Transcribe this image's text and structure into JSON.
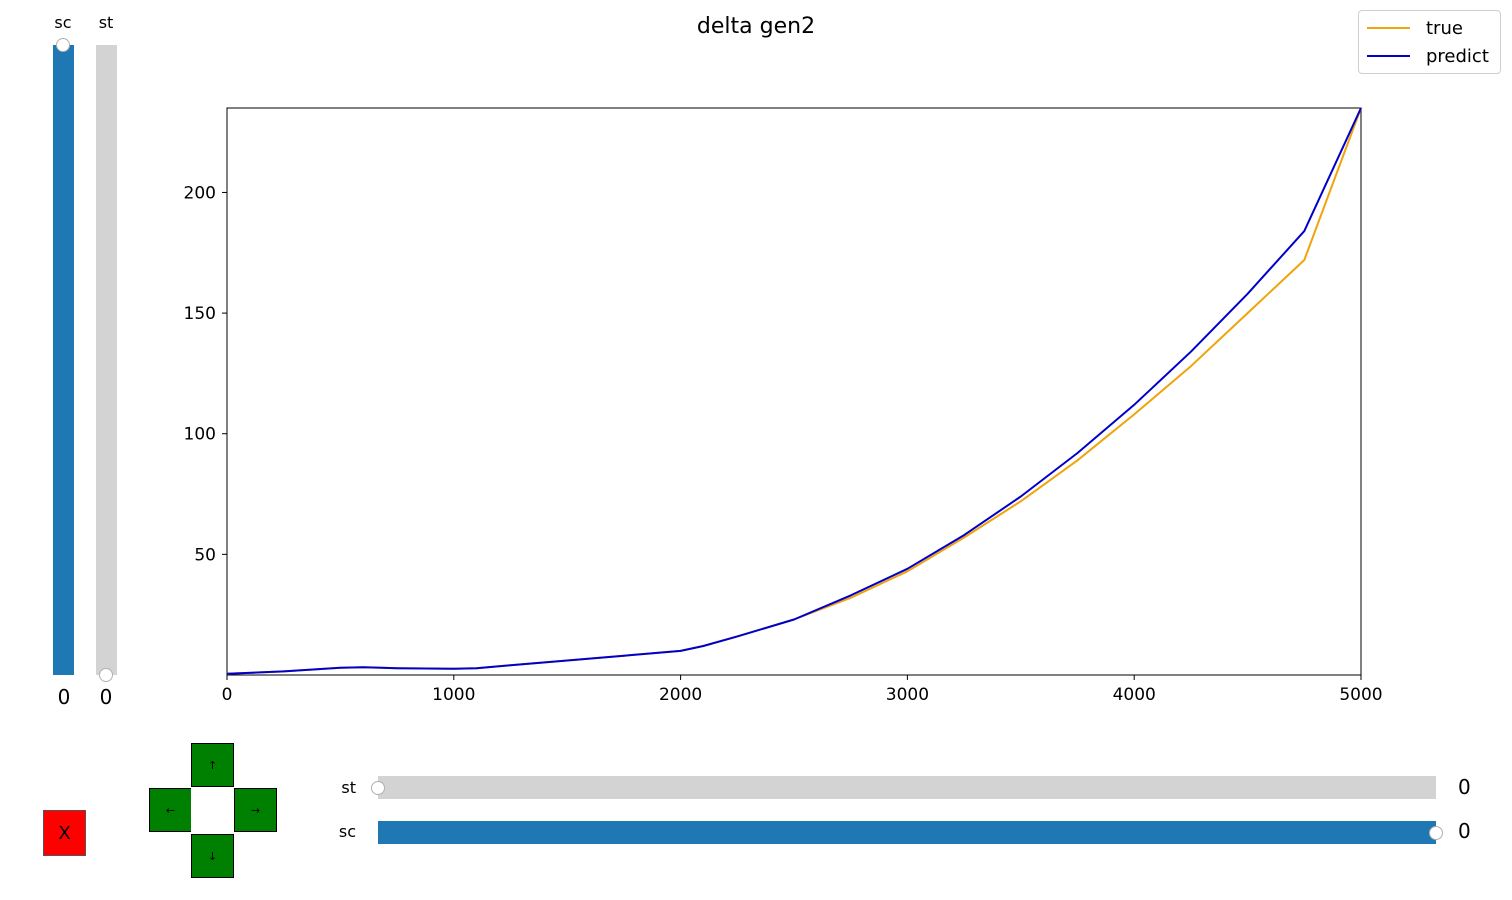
{
  "window": {
    "title": "delta gen2"
  },
  "vertical_sliders": [
    {
      "label": "sc",
      "value": "0",
      "fill_fraction": 1.0,
      "color": "#1f77b4"
    },
    {
      "label": "st",
      "value": "0",
      "fill_fraction": 0.0,
      "color": "#1f77b4"
    }
  ],
  "horizontal_sliders": [
    {
      "label": "st",
      "value": "0",
      "fill_fraction": 0.0,
      "color": "#1f77b4"
    },
    {
      "label": "sc",
      "value": "0",
      "fill_fraction": 1.0,
      "color": "#1f77b4"
    }
  ],
  "controls": {
    "close_label": "X",
    "up_label": "↑",
    "left_label": "←",
    "right_label": "→",
    "down_label": "↓"
  },
  "legend": [
    {
      "label": "true",
      "color": "#f0a30a"
    },
    {
      "label": "predict",
      "color": "#0000cd"
    }
  ],
  "chart_data": {
    "type": "line",
    "title": "delta gen2",
    "xlim": [
      0,
      5000
    ],
    "ylim": [
      0,
      235
    ],
    "x_ticks": [
      0,
      1000,
      2000,
      3000,
      4000,
      5000
    ],
    "y_ticks": [
      50,
      100,
      150,
      200
    ],
    "grid": false,
    "legend_position": "top-right",
    "series": [
      {
        "name": "true",
        "color": "#f0a30a",
        "x": [
          0,
          250,
          500,
          600,
          750,
          1000,
          1100,
          1250,
          1500,
          1750,
          2000,
          2100,
          2250,
          2500,
          2750,
          3000,
          3250,
          3500,
          3750,
          4000,
          4250,
          4500,
          4750,
          5000
        ],
        "y": [
          0.5,
          1.5,
          3,
          3.2,
          2.8,
          2.6,
          2.8,
          4,
          6,
          8,
          10,
          12,
          16,
          23,
          32,
          43,
          57,
          72,
          89,
          108,
          128,
          150,
          172,
          235
        ]
      },
      {
        "name": "predict",
        "color": "#0000cd",
        "x": [
          0,
          250,
          500,
          600,
          750,
          1000,
          1100,
          1250,
          1500,
          1750,
          2000,
          2100,
          2250,
          2500,
          2750,
          3000,
          3250,
          3500,
          3750,
          4000,
          4250,
          4500,
          4750,
          5000
        ],
        "y": [
          0.5,
          1.5,
          3,
          3.2,
          2.8,
          2.6,
          2.8,
          4,
          6,
          8,
          10,
          12,
          16,
          23,
          33,
          44,
          58,
          74,
          92,
          112,
          134,
          158,
          184,
          235
        ]
      }
    ]
  }
}
